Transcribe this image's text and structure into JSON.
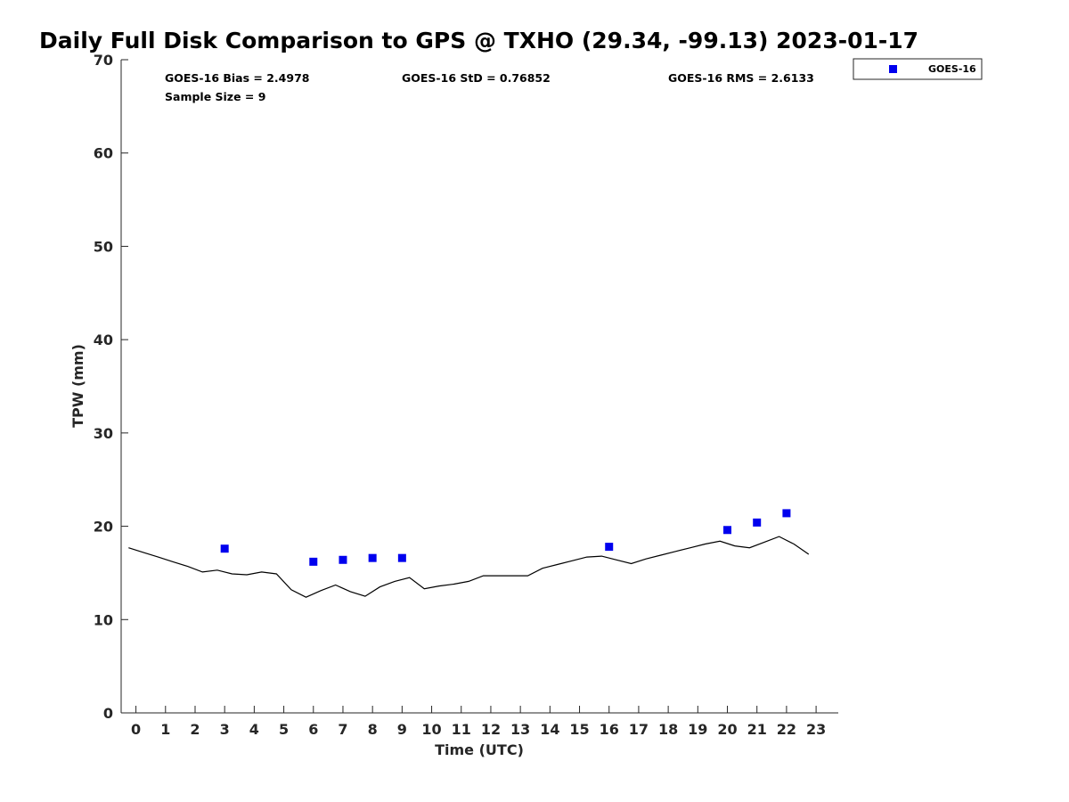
{
  "chart_data": {
    "type": "scatter",
    "title": "Daily Full Disk Comparison to GPS @ TXHO (29.34, -99.13) 2023-01-17",
    "xlabel": "Time (UTC)",
    "ylabel": "TPW (mm)",
    "xlim": [
      -0.5,
      23.75
    ],
    "ylim": [
      0,
      70
    ],
    "x_ticks": [
      0,
      1,
      2,
      3,
      4,
      5,
      6,
      7,
      8,
      9,
      10,
      11,
      12,
      13,
      14,
      15,
      16,
      17,
      18,
      19,
      20,
      21,
      22,
      23
    ],
    "y_ticks": [
      0,
      10,
      20,
      30,
      40,
      50,
      60,
      70
    ],
    "grid": false,
    "legend": {
      "placement": "top-right",
      "entries": [
        "GOES-16"
      ]
    },
    "stats": {
      "bias": "GOES-16 Bias = 2.4978",
      "std": "GOES-16 StD = 0.76852",
      "rms": "GOES-16 RMS = 2.6133",
      "sample": "Sample Size = 9"
    },
    "series": [
      {
        "name": "GOES-16",
        "kind": "markers",
        "color": "#0000ee",
        "x": [
          3,
          6,
          7,
          8,
          9,
          16,
          20,
          21,
          22
        ],
        "y": [
          17.6,
          16.2,
          16.4,
          16.6,
          16.6,
          17.8,
          19.6,
          20.4,
          21.4
        ]
      },
      {
        "kind": "line",
        "color": "#000000",
        "x": [
          -0.25,
          0.25,
          0.75,
          1.25,
          1.75,
          2.25,
          2.75,
          3.25,
          3.75,
          4.25,
          4.75,
          5.25,
          5.75,
          6.25,
          6.75,
          7.25,
          7.75,
          8.25,
          8.75,
          9.25,
          9.75,
          10.25,
          10.75,
          11.25,
          11.75,
          12.25,
          12.75,
          13.25,
          13.75,
          14.25,
          14.75,
          15.25,
          15.75,
          16.25,
          16.75,
          17.25,
          17.75,
          18.25,
          18.75,
          19.25,
          19.75,
          20.25,
          20.75,
          21.25,
          21.75,
          22.25,
          22.75
        ],
        "y": [
          17.7,
          17.2,
          16.7,
          16.2,
          15.7,
          15.1,
          15.3,
          14.9,
          14.8,
          15.1,
          14.9,
          13.2,
          12.4,
          13.1,
          13.7,
          13.0,
          12.5,
          13.5,
          14.1,
          14.5,
          13.3,
          13.6,
          13.8,
          14.1,
          14.7,
          14.7,
          14.7,
          14.7,
          15.5,
          15.9,
          16.3,
          16.7,
          16.8,
          16.4,
          16.0,
          16.5,
          16.9,
          17.3,
          17.7,
          18.1,
          18.4,
          17.9,
          17.7,
          18.3,
          18.9,
          18.1,
          17.0
        ]
      }
    ]
  }
}
